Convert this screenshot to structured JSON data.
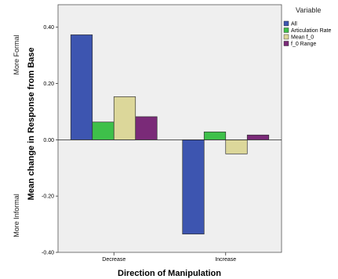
{
  "chart_data": {
    "type": "bar",
    "categories": [
      "Decrease",
      "Increase"
    ],
    "series": [
      {
        "name": "All",
        "values": [
          0.373,
          -0.335
        ],
        "color": "#3d55b0"
      },
      {
        "name": "Articulation Rate",
        "values": [
          0.063,
          0.028
        ],
        "color": "#3ec04a"
      },
      {
        "name": "Mean f_0",
        "values": [
          0.153,
          -0.05
        ],
        "color": "#dcd79a"
      },
      {
        "name": "f_0 Range",
        "values": [
          0.082,
          0.017
        ],
        "color": "#7a2a78"
      }
    ],
    "xlabel": "Direction of Manipulation",
    "ylabel": "Mean change in Response from Base",
    "ylim": [
      -0.4,
      0.48
    ],
    "yticks": [
      -0.4,
      -0.2,
      0.0,
      0.2,
      0.4
    ],
    "ytick_labels": [
      "-0.40",
      "-0.20",
      "0.00",
      "0.20",
      "0.40"
    ],
    "side_labels": {
      "upper": "More Formal",
      "lower": "More Informal"
    },
    "legend_title": "Variable",
    "legend_position": "right",
    "plot_background": "#efefef",
    "grid": false
  }
}
